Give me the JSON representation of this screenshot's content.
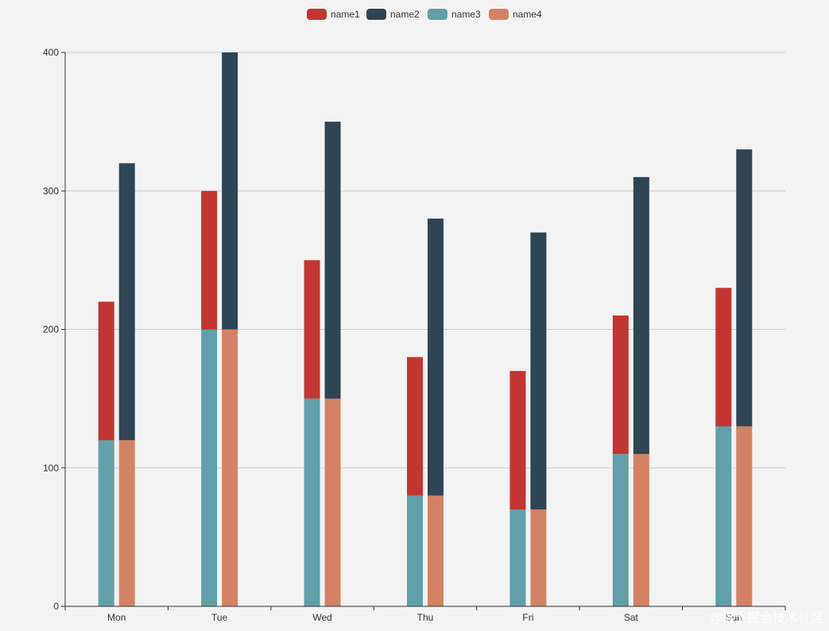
{
  "chart_data": {
    "type": "bar",
    "stacked": true,
    "categories": [
      "Mon",
      "Tue",
      "Wed",
      "Thu",
      "Fri",
      "Sat",
      "Sun"
    ],
    "stacks": [
      {
        "stack": "left",
        "series": [
          "name3",
          "name1"
        ]
      },
      {
        "stack": "right",
        "series": [
          "name4",
          "name2"
        ]
      }
    ],
    "series": [
      {
        "name": "name1",
        "stack": "left",
        "color": "#c23531",
        "values": [
          100,
          100,
          100,
          100,
          100,
          100,
          100
        ]
      },
      {
        "name": "name2",
        "stack": "right",
        "color": "#2f4554",
        "values": [
          200,
          200,
          200,
          200,
          200,
          200,
          200
        ]
      },
      {
        "name": "name3",
        "stack": "left",
        "color": "#61a0a8",
        "values": [
          120,
          200,
          150,
          80,
          70,
          110,
          130
        ]
      },
      {
        "name": "name4",
        "stack": "right",
        "color": "#d48265",
        "values": [
          120,
          200,
          150,
          80,
          70,
          110,
          130
        ]
      }
    ],
    "legend": [
      "name1",
      "name2",
      "name3",
      "name4"
    ],
    "legend_position": "top-center",
    "ylim": [
      0,
      400
    ],
    "yticks": [
      0,
      100,
      200,
      300,
      400
    ],
    "grid": true,
    "title": "",
    "xlabel": "",
    "ylabel": ""
  },
  "watermark": "@稀土掘金技术社区",
  "colors": {
    "background": "#f3f3f3",
    "grid": "#cccccc",
    "axis": "#333333"
  }
}
